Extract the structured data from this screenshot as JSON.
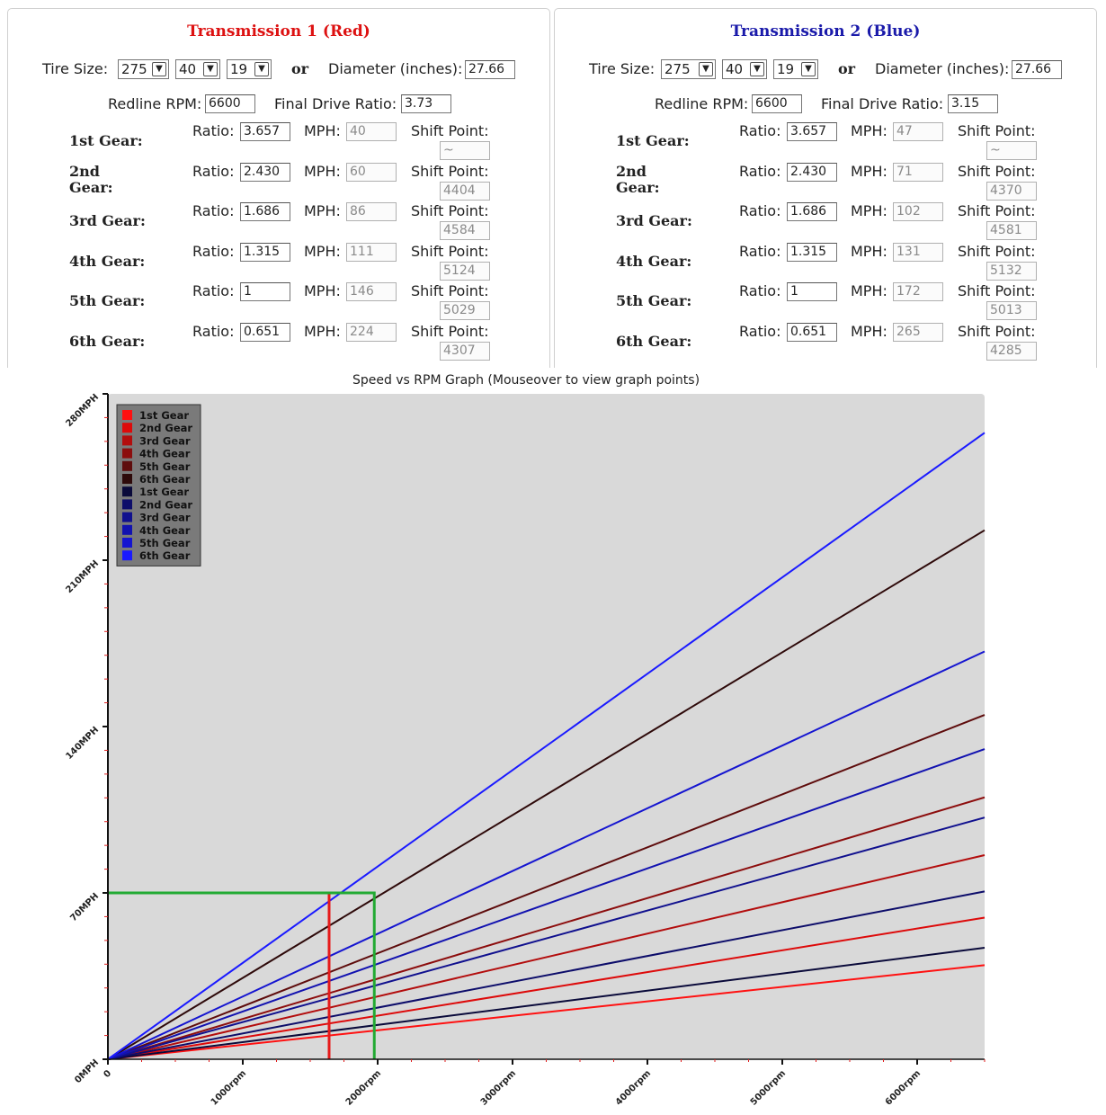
{
  "transmissions": [
    {
      "title": "Transmission 1 (Red)",
      "title_color": "#dd1111",
      "tire_label": "Tire Size:",
      "tire_width": "275",
      "tire_aspect": "40",
      "tire_rim": "19",
      "or_label": "or",
      "diameter_label": "Diameter (inches):",
      "diameter": "27.66",
      "redline_label": "Redline RPM:",
      "redline": "6600",
      "final_drive_label": "Final Drive Ratio:",
      "final_drive": "3.73",
      "ratio_label": "Ratio:",
      "mph_label": "MPH:",
      "shift_label": "Shift Point:",
      "gears": [
        {
          "name": "1st Gear:",
          "ratio": "3.657",
          "mph": "40",
          "shift": "~"
        },
        {
          "name": "2nd Gear:",
          "ratio": "2.430",
          "mph": "60",
          "shift": "4404"
        },
        {
          "name": "3rd Gear:",
          "ratio": "1.686",
          "mph": "86",
          "shift": "4584"
        },
        {
          "name": "4th Gear:",
          "ratio": "1.315",
          "mph": "111",
          "shift": "5124"
        },
        {
          "name": "5th Gear:",
          "ratio": "1",
          "mph": "146",
          "shift": "5029"
        },
        {
          "name": "6th Gear:",
          "ratio": "0.651",
          "mph": "224",
          "shift": "4307"
        }
      ]
    },
    {
      "title": "Transmission 2 (Blue)",
      "title_color": "#1a1aaa",
      "tire_label": "Tire Size:",
      "tire_width": "275",
      "tire_aspect": "40",
      "tire_rim": "19",
      "or_label": "or",
      "diameter_label": "Diameter (inches):",
      "diameter": "27.66",
      "redline_label": "Redline RPM:",
      "redline": "6600",
      "final_drive_label": "Final Drive Ratio:",
      "final_drive": "3.15",
      "ratio_label": "Ratio:",
      "mph_label": "MPH:",
      "shift_label": "Shift Point:",
      "gears": [
        {
          "name": "1st Gear:",
          "ratio": "3.657",
          "mph": "47",
          "shift": "~"
        },
        {
          "name": "2nd Gear:",
          "ratio": "2.430",
          "mph": "71",
          "shift": "4370"
        },
        {
          "name": "3rd Gear:",
          "ratio": "1.686",
          "mph": "102",
          "shift": "4581"
        },
        {
          "name": "4th Gear:",
          "ratio": "1.315",
          "mph": "131",
          "shift": "5132"
        },
        {
          "name": "5th Gear:",
          "ratio": "1",
          "mph": "172",
          "shift": "5013"
        },
        {
          "name": "6th Gear:",
          "ratio": "0.651",
          "mph": "265",
          "shift": "4285"
        }
      ]
    }
  ],
  "chart_data": {
    "type": "line",
    "title": "Speed vs RPM Graph (Mouseover to view graph points)",
    "x_ticks": [
      "0",
      "1000rpm",
      "2000rpm",
      "3000rpm",
      "4000rpm",
      "5000rpm",
      "6000rpm"
    ],
    "y_ticks": [
      "0MPH",
      "70MPH",
      "140MPH",
      "210MPH",
      "280MPH"
    ],
    "xlim": [
      0,
      6500
    ],
    "ylim": [
      0,
      280
    ],
    "background": "#d9d9d9",
    "legend": [
      {
        "label": "1st Gear",
        "color": "#ff1111"
      },
      {
        "label": "2nd Gear",
        "color": "#dd0a0a"
      },
      {
        "label": "3rd Gear",
        "color": "#b30d0d"
      },
      {
        "label": "4th Gear",
        "color": "#8c0d0d"
      },
      {
        "label": "5th Gear",
        "color": "#5e0c0c"
      },
      {
        "label": "6th Gear",
        "color": "#2e0a0a"
      },
      {
        "label": "1st Gear",
        "color": "#0a0a3a"
      },
      {
        "label": "2nd Gear",
        "color": "#0d0d6a"
      },
      {
        "label": "3rd Gear",
        "color": "#10108e"
      },
      {
        "label": "4th Gear",
        "color": "#1212b0"
      },
      {
        "label": "5th Gear",
        "color": "#1515d0"
      },
      {
        "label": "6th Gear",
        "color": "#1a1aff"
      }
    ],
    "series": [
      {
        "name": "1st Gear",
        "color": "#ff1111",
        "x": [
          0,
          6500
        ],
        "y": [
          0,
          39.6
        ]
      },
      {
        "name": "2nd Gear",
        "color": "#dd0a0a",
        "x": [
          0,
          6500
        ],
        "y": [
          0,
          59.6
        ]
      },
      {
        "name": "3rd Gear",
        "color": "#b30d0d",
        "x": [
          0,
          6500
        ],
        "y": [
          0,
          85.9
        ]
      },
      {
        "name": "4th Gear",
        "color": "#8c0d0d",
        "x": [
          0,
          6500
        ],
        "y": [
          0,
          110.2
        ]
      },
      {
        "name": "5th Gear",
        "color": "#5e0c0c",
        "x": [
          0,
          6500
        ],
        "y": [
          0,
          144.9
        ]
      },
      {
        "name": "6th Gear",
        "color": "#2e0a0a",
        "x": [
          0,
          6500
        ],
        "y": [
          0,
          222.6
        ]
      },
      {
        "name": "1st Gear",
        "color": "#0a0a3a",
        "x": [
          0,
          6500
        ],
        "y": [
          0,
          46.9
        ]
      },
      {
        "name": "2nd Gear",
        "color": "#0d0d6a",
        "x": [
          0,
          6500
        ],
        "y": [
          0,
          70.6
        ]
      },
      {
        "name": "3rd Gear",
        "color": "#10108e",
        "x": [
          0,
          6500
        ],
        "y": [
          0,
          101.7
        ]
      },
      {
        "name": "4th Gear",
        "color": "#1212b0",
        "x": [
          0,
          6500
        ],
        "y": [
          0,
          130.5
        ]
      },
      {
        "name": "5th Gear",
        "color": "#1515d0",
        "x": [
          0,
          6500
        ],
        "y": [
          0,
          171.6
        ]
      },
      {
        "name": "6th Gear",
        "color": "#1a1aff",
        "x": [
          0,
          6500
        ],
        "y": [
          0,
          263.6
        ]
      }
    ],
    "markers": [
      {
        "name": "transmission-1-marker",
        "color": "#e61a1a",
        "rpm": 1640,
        "mph": 70
      },
      {
        "name": "transmission-2-marker",
        "color": "#22aa33",
        "rpm": 1975,
        "mph": 70
      }
    ]
  }
}
